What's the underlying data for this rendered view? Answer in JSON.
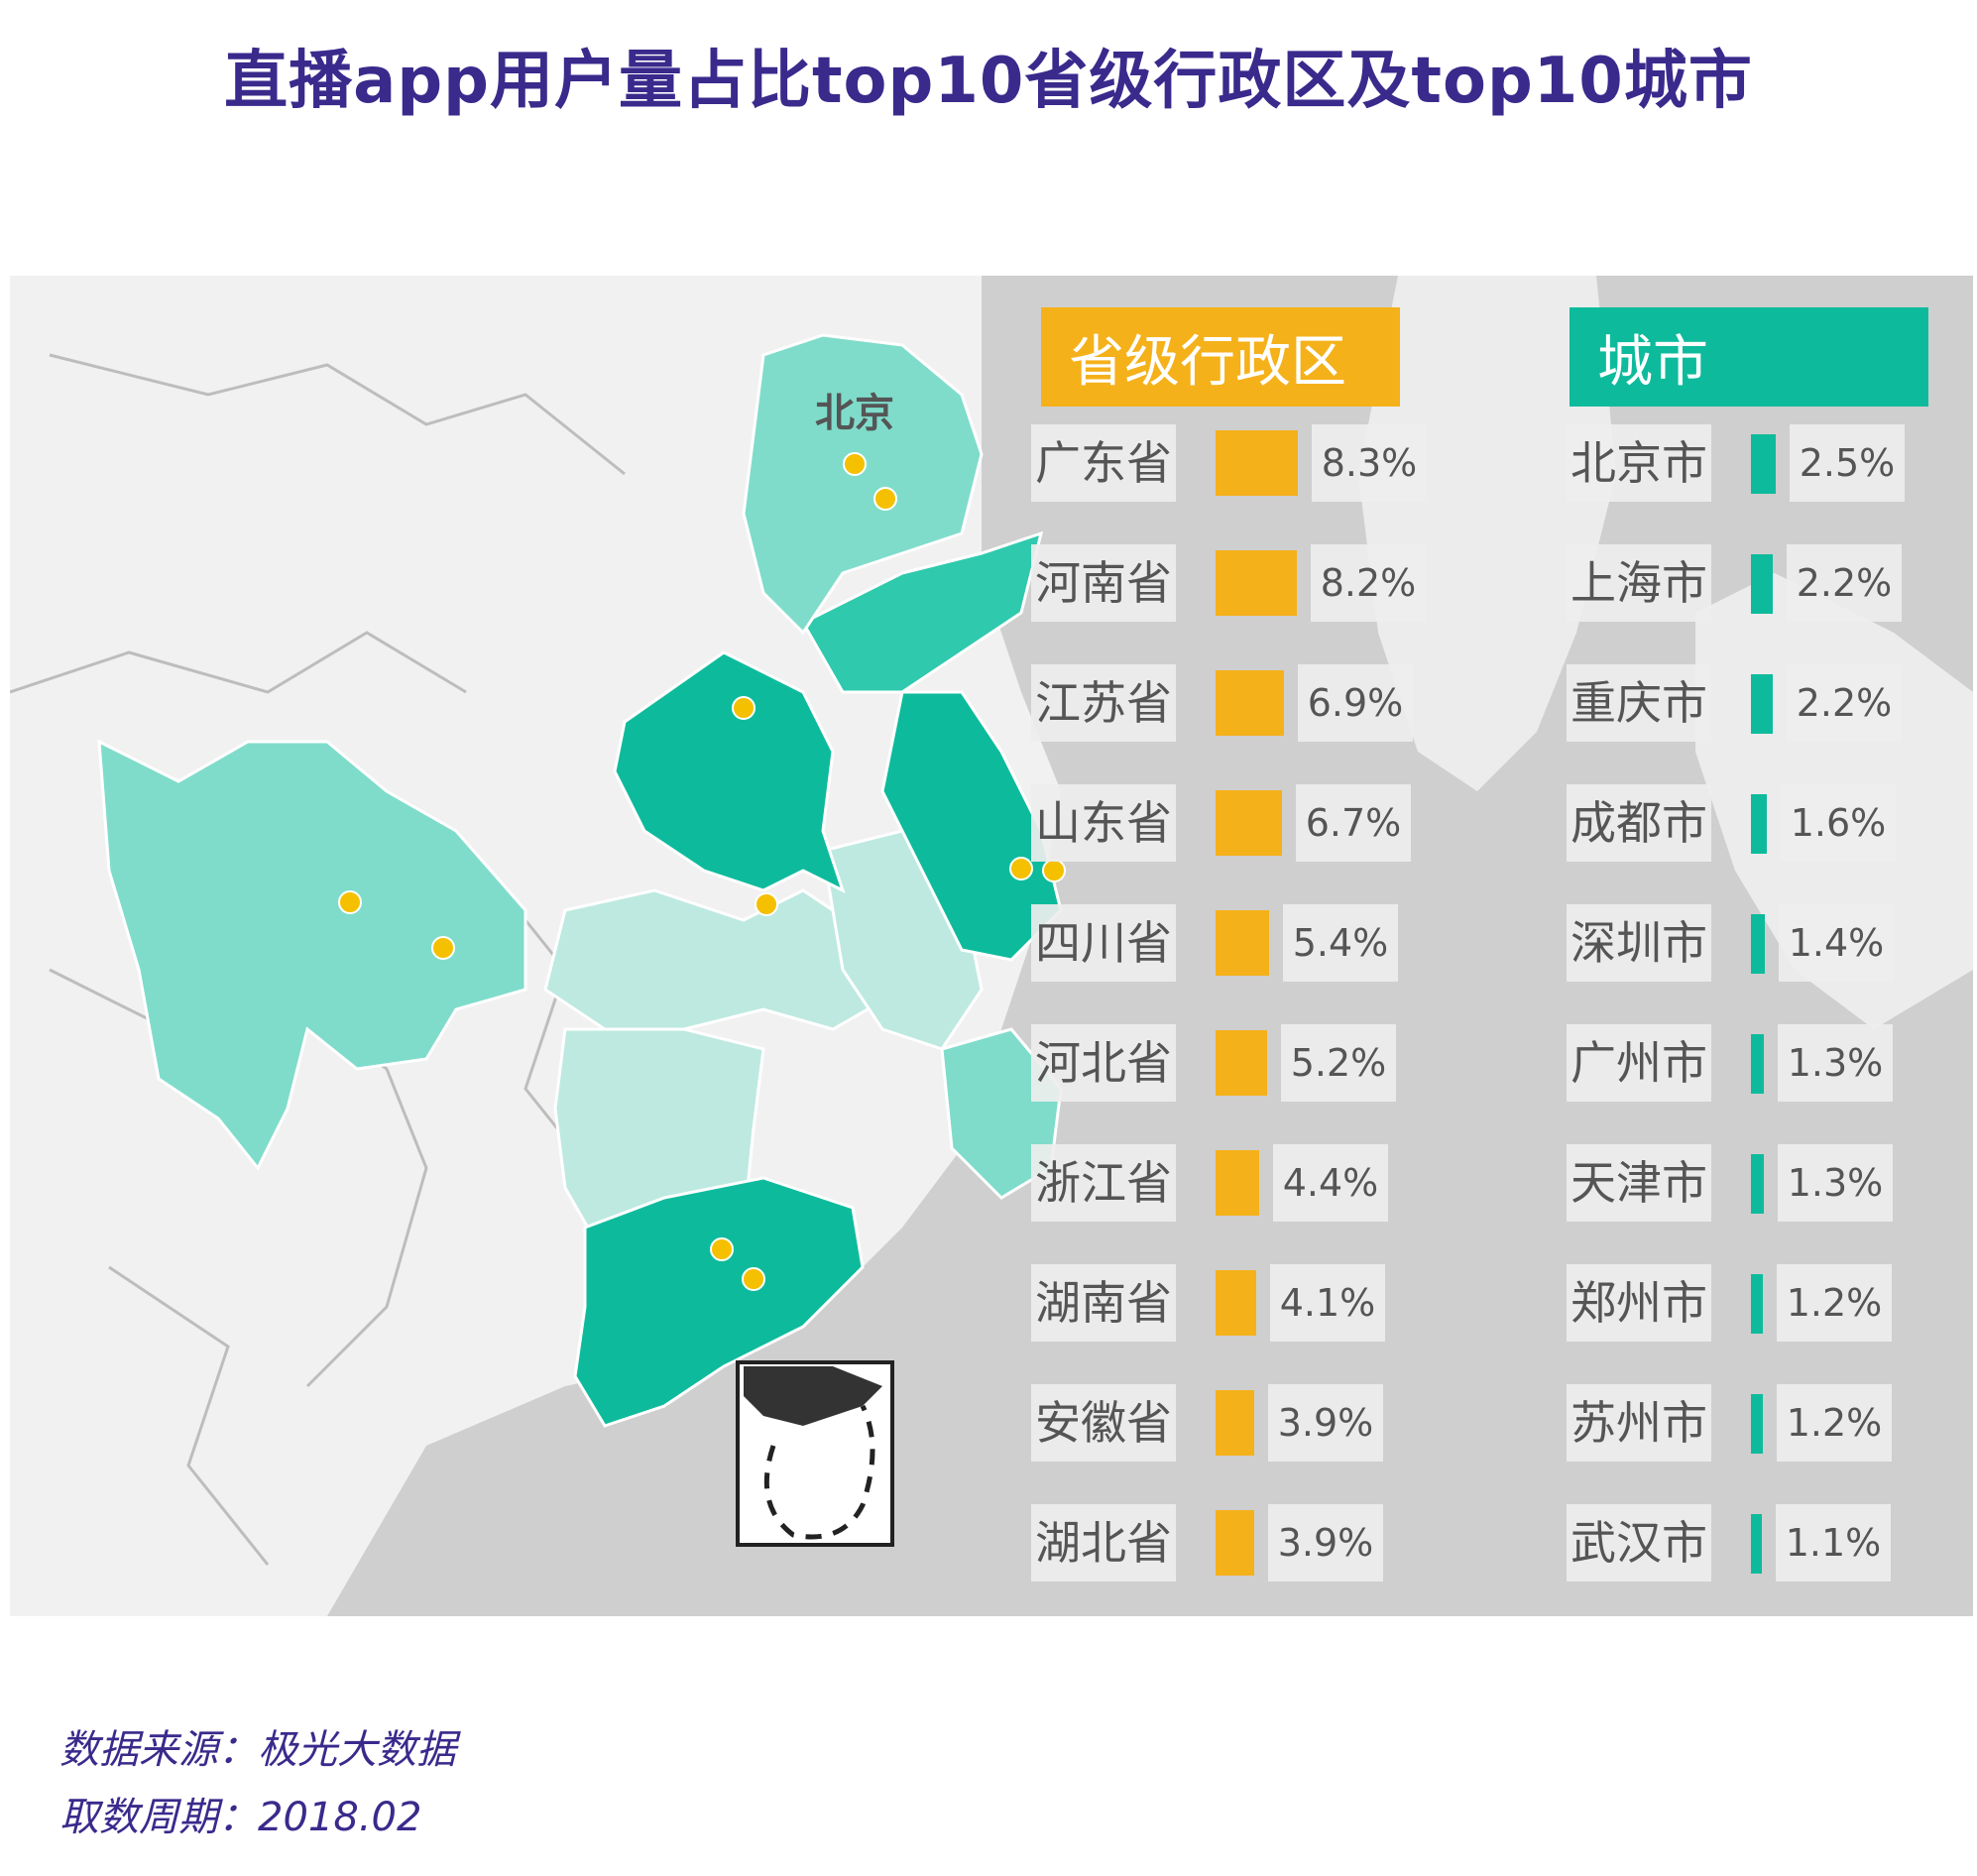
{
  "title": "直播app用户量占比top10省级行政区及top10城市",
  "map_label": "北京",
  "colors": {
    "title": "#3a2a8c",
    "province_bar": "#f5b11a",
    "city_bar": "#0dbb9c",
    "map_dark": "#0dbb9c",
    "map_mid": "#7fdccb",
    "map_light": "#bde9e0"
  },
  "chart_data": [
    {
      "type": "bar",
      "title": "省级行政区",
      "categories": [
        "广东省",
        "河南省",
        "江苏省",
        "山东省",
        "四川省",
        "河北省",
        "浙江省",
        "湖南省",
        "安徽省",
        "湖北省"
      ],
      "values": [
        8.3,
        8.2,
        6.9,
        6.7,
        5.4,
        5.2,
        4.4,
        4.1,
        3.9,
        3.9
      ],
      "labels": [
        "8.3%",
        "8.2%",
        "6.9%",
        "6.7%",
        "5.4%",
        "5.2%",
        "4.4%",
        "4.1%",
        "3.9%",
        "3.9%"
      ],
      "unit": "%"
    },
    {
      "type": "bar",
      "title": "城市",
      "categories": [
        "北京市",
        "上海市",
        "重庆市",
        "成都市",
        "深圳市",
        "广州市",
        "天津市",
        "郑州市",
        "苏州市",
        "武汉市"
      ],
      "values": [
        2.5,
        2.2,
        2.2,
        1.6,
        1.4,
        1.3,
        1.3,
        1.2,
        1.2,
        1.1
      ],
      "labels": [
        "2.5%",
        "2.2%",
        "2.2%",
        "1.6%",
        "1.4%",
        "1.3%",
        "1.3%",
        "1.2%",
        "1.2%",
        "1.1%"
      ],
      "unit": "%"
    }
  ],
  "source": {
    "line1": "数据来源：极光大数据",
    "line2": "取数周期：2018.02"
  }
}
